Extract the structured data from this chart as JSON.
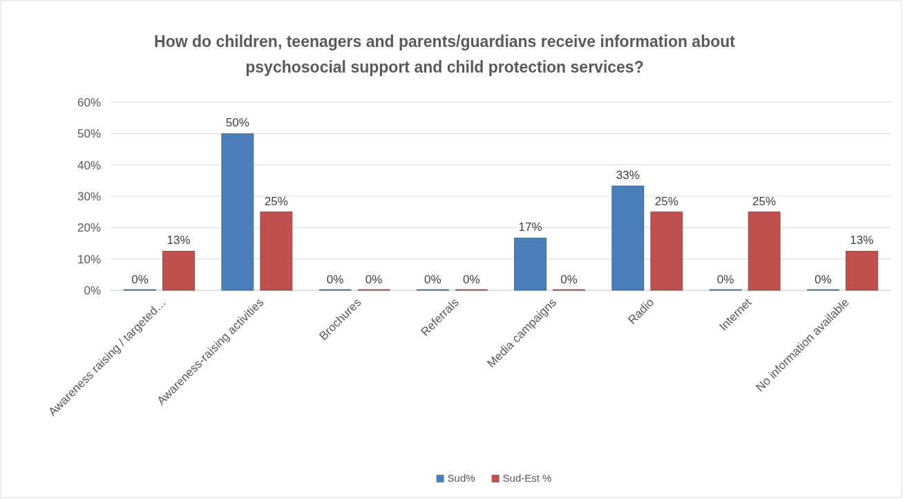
{
  "chart_data": {
    "type": "bar",
    "title": "How do children, teenagers and parents/guardians receive information about psychosocial support and child protection services?",
    "categories": [
      "Awareness raising / targeted…",
      "Awareness-raising activities",
      "Brochures",
      "Referrals",
      "Media campaigns",
      "Radio",
      "Internet",
      "No information available"
    ],
    "series": [
      {
        "name": "Sud%",
        "color": "#4a7ebb",
        "values": [
          0,
          50,
          0,
          0,
          16.7,
          33.3,
          0,
          0
        ],
        "value_labels": [
          "0%",
          "50%",
          "0%",
          "0%",
          "17%",
          "33%",
          "0%",
          "0%"
        ]
      },
      {
        "name": "Sud-Est %",
        "color": "#c0504d",
        "values": [
          12.5,
          25,
          0,
          0,
          0,
          25,
          25,
          12.5
        ],
        "value_labels": [
          "13%",
          "25%",
          "0%",
          "0%",
          "0%",
          "25%",
          "25%",
          "13%"
        ]
      }
    ],
    "ylim": [
      0,
      60
    ],
    "yticks": [
      {
        "value": 0,
        "label": "0%"
      },
      {
        "value": 10,
        "label": "10%"
      },
      {
        "value": 20,
        "label": "20%"
      },
      {
        "value": 30,
        "label": "30%"
      },
      {
        "value": 40,
        "label": "40%"
      },
      {
        "value": 50,
        "label": "50%"
      },
      {
        "value": 60,
        "label": "60%"
      }
    ],
    "grid": "y",
    "legend": "bottom"
  }
}
